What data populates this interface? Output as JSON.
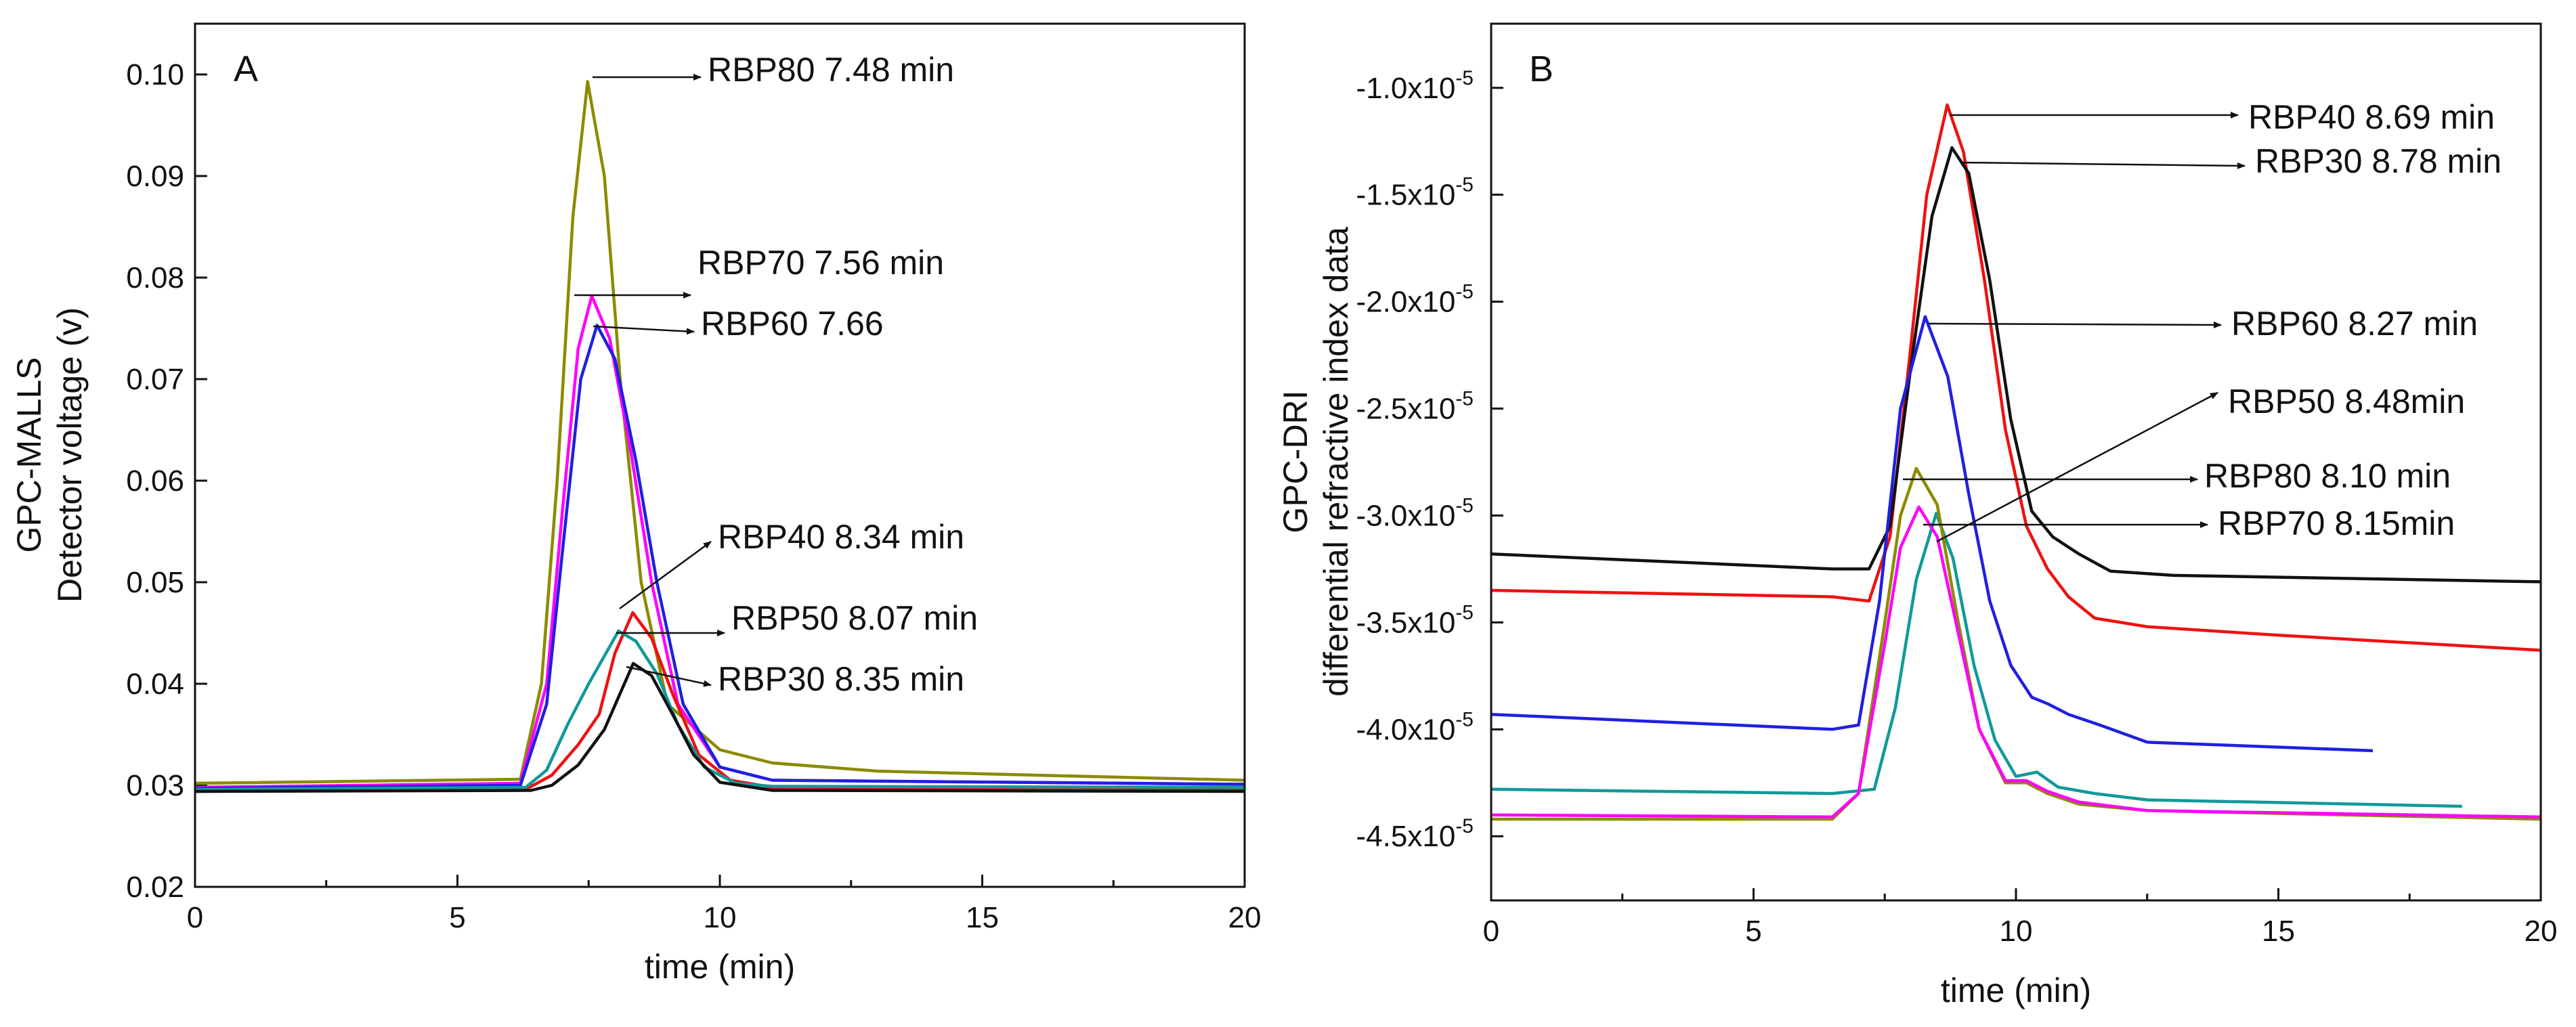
{
  "chart_data": [
    {
      "type": "line",
      "panel": "A",
      "title": "",
      "xlabel": "time (min)",
      "ylabel_lines": [
        "GPC-MALLS",
        "Detector voltage (v)"
      ],
      "xlim": [
        0,
        20
      ],
      "ylim": [
        0.02,
        0.105
      ],
      "xticks": [
        0,
        5,
        10,
        15,
        20
      ],
      "xtick_labels": [
        "0",
        "5",
        "10",
        "15",
        "20"
      ],
      "yticks": [
        0.02,
        0.03,
        0.04,
        0.05,
        0.06,
        0.07,
        0.08,
        0.09,
        0.1
      ],
      "ytick_labels": [
        "0.02",
        "0.03",
        "0.04",
        "0.05",
        "0.06",
        "0.07",
        "0.08",
        "0.09",
        "0.10"
      ],
      "legend": "none",
      "series": [
        {
          "name": "RBP80",
          "color": "#8b8b00",
          "x": [
            0,
            6.2,
            6.6,
            6.9,
            7.2,
            7.48,
            7.8,
            8.1,
            8.5,
            9.0,
            10.0,
            11.0,
            13.0,
            16.0,
            20.0
          ],
          "y": [
            0.0302,
            0.0306,
            0.04,
            0.06,
            0.086,
            0.0993,
            0.09,
            0.07,
            0.05,
            0.038,
            0.0335,
            0.0322,
            0.0314,
            0.031,
            0.0305
          ]
        },
        {
          "name": "RBP70",
          "color": "#ff00ff",
          "x": [
            0,
            6.2,
            6.7,
            7.0,
            7.3,
            7.56,
            7.9,
            8.3,
            8.7,
            9.2,
            10.0,
            11.0,
            20.0
          ],
          "y": [
            0.0298,
            0.0302,
            0.04,
            0.057,
            0.073,
            0.0782,
            0.074,
            0.063,
            0.05,
            0.038,
            0.0318,
            0.0305,
            0.0301
          ]
        },
        {
          "name": "RBP60",
          "color": "#2020e0",
          "x": [
            0,
            6.2,
            6.7,
            7.0,
            7.35,
            7.66,
            8.0,
            8.4,
            8.8,
            9.3,
            10.0,
            11.0,
            20.0
          ],
          "y": [
            0.0297,
            0.03,
            0.038,
            0.053,
            0.07,
            0.0753,
            0.072,
            0.062,
            0.05,
            0.038,
            0.0318,
            0.0305,
            0.0301
          ]
        },
        {
          "name": "RBP40",
          "color": "#ee1111",
          "x": [
            0,
            6.3,
            6.8,
            7.3,
            7.7,
            8.0,
            8.34,
            8.7,
            9.1,
            9.6,
            10.2,
            11.0,
            20.0
          ],
          "y": [
            0.0294,
            0.0296,
            0.031,
            0.034,
            0.037,
            0.043,
            0.047,
            0.0445,
            0.039,
            0.033,
            0.0305,
            0.0298,
            0.0296
          ]
        },
        {
          "name": "RBP50",
          "color": "#119999",
          "x": [
            0,
            6.3,
            6.7,
            7.1,
            7.5,
            8.07,
            8.4,
            8.8,
            9.2,
            9.7,
            10.3,
            11.0,
            20.0
          ],
          "y": [
            0.0296,
            0.0298,
            0.0315,
            0.036,
            0.04,
            0.0452,
            0.0442,
            0.041,
            0.036,
            0.0318,
            0.0302,
            0.0299,
            0.0298
          ]
        },
        {
          "name": "RBP30",
          "color": "#111111",
          "x": [
            0,
            6.4,
            6.8,
            7.3,
            7.8,
            8.35,
            8.7,
            9.1,
            9.5,
            10.0,
            11.0,
            20.0
          ],
          "y": [
            0.0294,
            0.0295,
            0.03,
            0.032,
            0.0355,
            0.042,
            0.0408,
            0.037,
            0.033,
            0.0303,
            0.0295,
            0.0294
          ]
        }
      ],
      "annotations": [
        {
          "text": "RBP80  7.48 min",
          "x": 7.48,
          "y": 0.0993
        },
        {
          "text": "RBP70 7.56 min",
          "x": 7.56,
          "y": 0.0782
        },
        {
          "text": "RBP60 7.66",
          "x": 7.66,
          "y": 0.0753
        },
        {
          "text": "RBP40  8.34 min",
          "x": 8.34,
          "y": 0.047
        },
        {
          "text": "RBP50 8.07 min",
          "x": 8.07,
          "y": 0.0452
        },
        {
          "text": "RBP30 8.35 min",
          "x": 8.35,
          "y": 0.042
        }
      ]
    },
    {
      "type": "line",
      "panel": "B",
      "title": "",
      "xlabel": "time (min)",
      "ylabel_lines": [
        "GPC-DRI",
        "differential refractive index data"
      ],
      "xlim": [
        0,
        20
      ],
      "ylim": [
        -4.8,
        -0.7
      ],
      "y_scale_note": "values in units of 10^-5",
      "xticks": [
        0,
        5,
        10,
        15,
        20
      ],
      "xtick_labels": [
        "0",
        "5",
        "10",
        "15",
        "20"
      ],
      "yticks": [
        -4.5,
        -4.0,
        -3.5,
        -3.0,
        -2.5,
        -2.0,
        -1.5,
        -1.0
      ],
      "ytick_labels": [
        "-4.5x10",
        "-4.0x10",
        "-3.5x10",
        "-3.0x10",
        "-2.5x10",
        "-2.0x10",
        "-1.5x10",
        "-1.0x10"
      ],
      "ytick_exponent": "-5",
      "legend": "none",
      "series": [
        {
          "name": "RBP40",
          "color": "#ee1111",
          "x": [
            0,
            6.5,
            7.2,
            7.6,
            8.0,
            8.3,
            8.69,
            9.0,
            9.4,
            9.8,
            10.2,
            10.6,
            11.0,
            11.5,
            12.5,
            15.0,
            20.0
          ],
          "y": [
            -3.35,
            -3.38,
            -3.4,
            -3.1,
            -2.2,
            -1.5,
            -1.08,
            -1.3,
            -1.9,
            -2.6,
            -3.05,
            -3.25,
            -3.38,
            -3.48,
            -3.52,
            -3.56,
            -3.63
          ]
        },
        {
          "name": "RBP30",
          "color": "#111111",
          "x": [
            0,
            6.5,
            7.2,
            7.6,
            8.0,
            8.4,
            8.78,
            9.1,
            9.5,
            9.9,
            10.3,
            10.7,
            11.2,
            11.8,
            13.0,
            20.0
          ],
          "y": [
            -3.18,
            -3.25,
            -3.25,
            -3.05,
            -2.3,
            -1.6,
            -1.28,
            -1.4,
            -1.9,
            -2.55,
            -2.98,
            -3.1,
            -3.18,
            -3.26,
            -3.28,
            -3.31
          ]
        },
        {
          "name": "RBP60",
          "color": "#2020e0",
          "x": [
            0,
            6.5,
            7.0,
            7.4,
            7.8,
            8.27,
            8.7,
            9.1,
            9.5,
            9.9,
            10.3,
            10.6,
            11.0,
            11.6,
            12.5,
            16.8
          ],
          "y": [
            -3.93,
            -4.0,
            -3.98,
            -3.4,
            -2.5,
            -2.07,
            -2.35,
            -2.9,
            -3.4,
            -3.7,
            -3.85,
            -3.88,
            -3.93,
            -3.98,
            -4.06,
            -4.1
          ]
        },
        {
          "name": "RBP50",
          "color": "#119999",
          "x": [
            0,
            6.5,
            7.3,
            7.7,
            8.1,
            8.48,
            8.8,
            9.2,
            9.6,
            10.0,
            10.4,
            10.8,
            11.5,
            12.5,
            18.5
          ],
          "y": [
            -4.28,
            -4.3,
            -4.28,
            -3.9,
            -3.3,
            -2.99,
            -3.2,
            -3.7,
            -4.05,
            -4.22,
            -4.2,
            -4.27,
            -4.3,
            -4.33,
            -4.36
          ]
        },
        {
          "name": "RBP80",
          "color": "#8b8b00",
          "x": [
            0,
            6.5,
            7.0,
            7.5,
            7.8,
            8.1,
            8.5,
            8.9,
            9.3,
            9.8,
            10.2,
            10.6,
            11.2,
            12.5,
            20.0
          ],
          "y": [
            -4.42,
            -4.42,
            -4.3,
            -3.5,
            -3.0,
            -2.78,
            -2.95,
            -3.5,
            -4.0,
            -4.25,
            -4.25,
            -4.3,
            -4.35,
            -4.38,
            -4.42
          ]
        },
        {
          "name": "RBP70",
          "color": "#ff00ff",
          "x": [
            0,
            6.5,
            7.0,
            7.5,
            7.8,
            8.15,
            8.5,
            8.9,
            9.3,
            9.8,
            10.2,
            10.6,
            11.2,
            12.5,
            20.0
          ],
          "y": [
            -4.4,
            -4.41,
            -4.3,
            -3.6,
            -3.15,
            -2.96,
            -3.1,
            -3.55,
            -4.0,
            -4.24,
            -4.24,
            -4.29,
            -4.34,
            -4.38,
            -4.41
          ]
        }
      ],
      "annotations": [
        {
          "text": "RBP40 8.69 min",
          "x": 8.69,
          "y": -1.08
        },
        {
          "text": "RBP30 8.78 min",
          "x": 8.78,
          "y": -1.28
        },
        {
          "text": "RBP60  8.27 min",
          "x": 8.27,
          "y": -2.07
        },
        {
          "text": "RBP50 8.48min",
          "x": 8.48,
          "y": -2.99
        },
        {
          "text": "RBP80  8.10 min",
          "x": 8.1,
          "y": -2.78
        },
        {
          "text": "RBP70 8.15min",
          "x": 8.15,
          "y": -2.96
        }
      ]
    }
  ]
}
